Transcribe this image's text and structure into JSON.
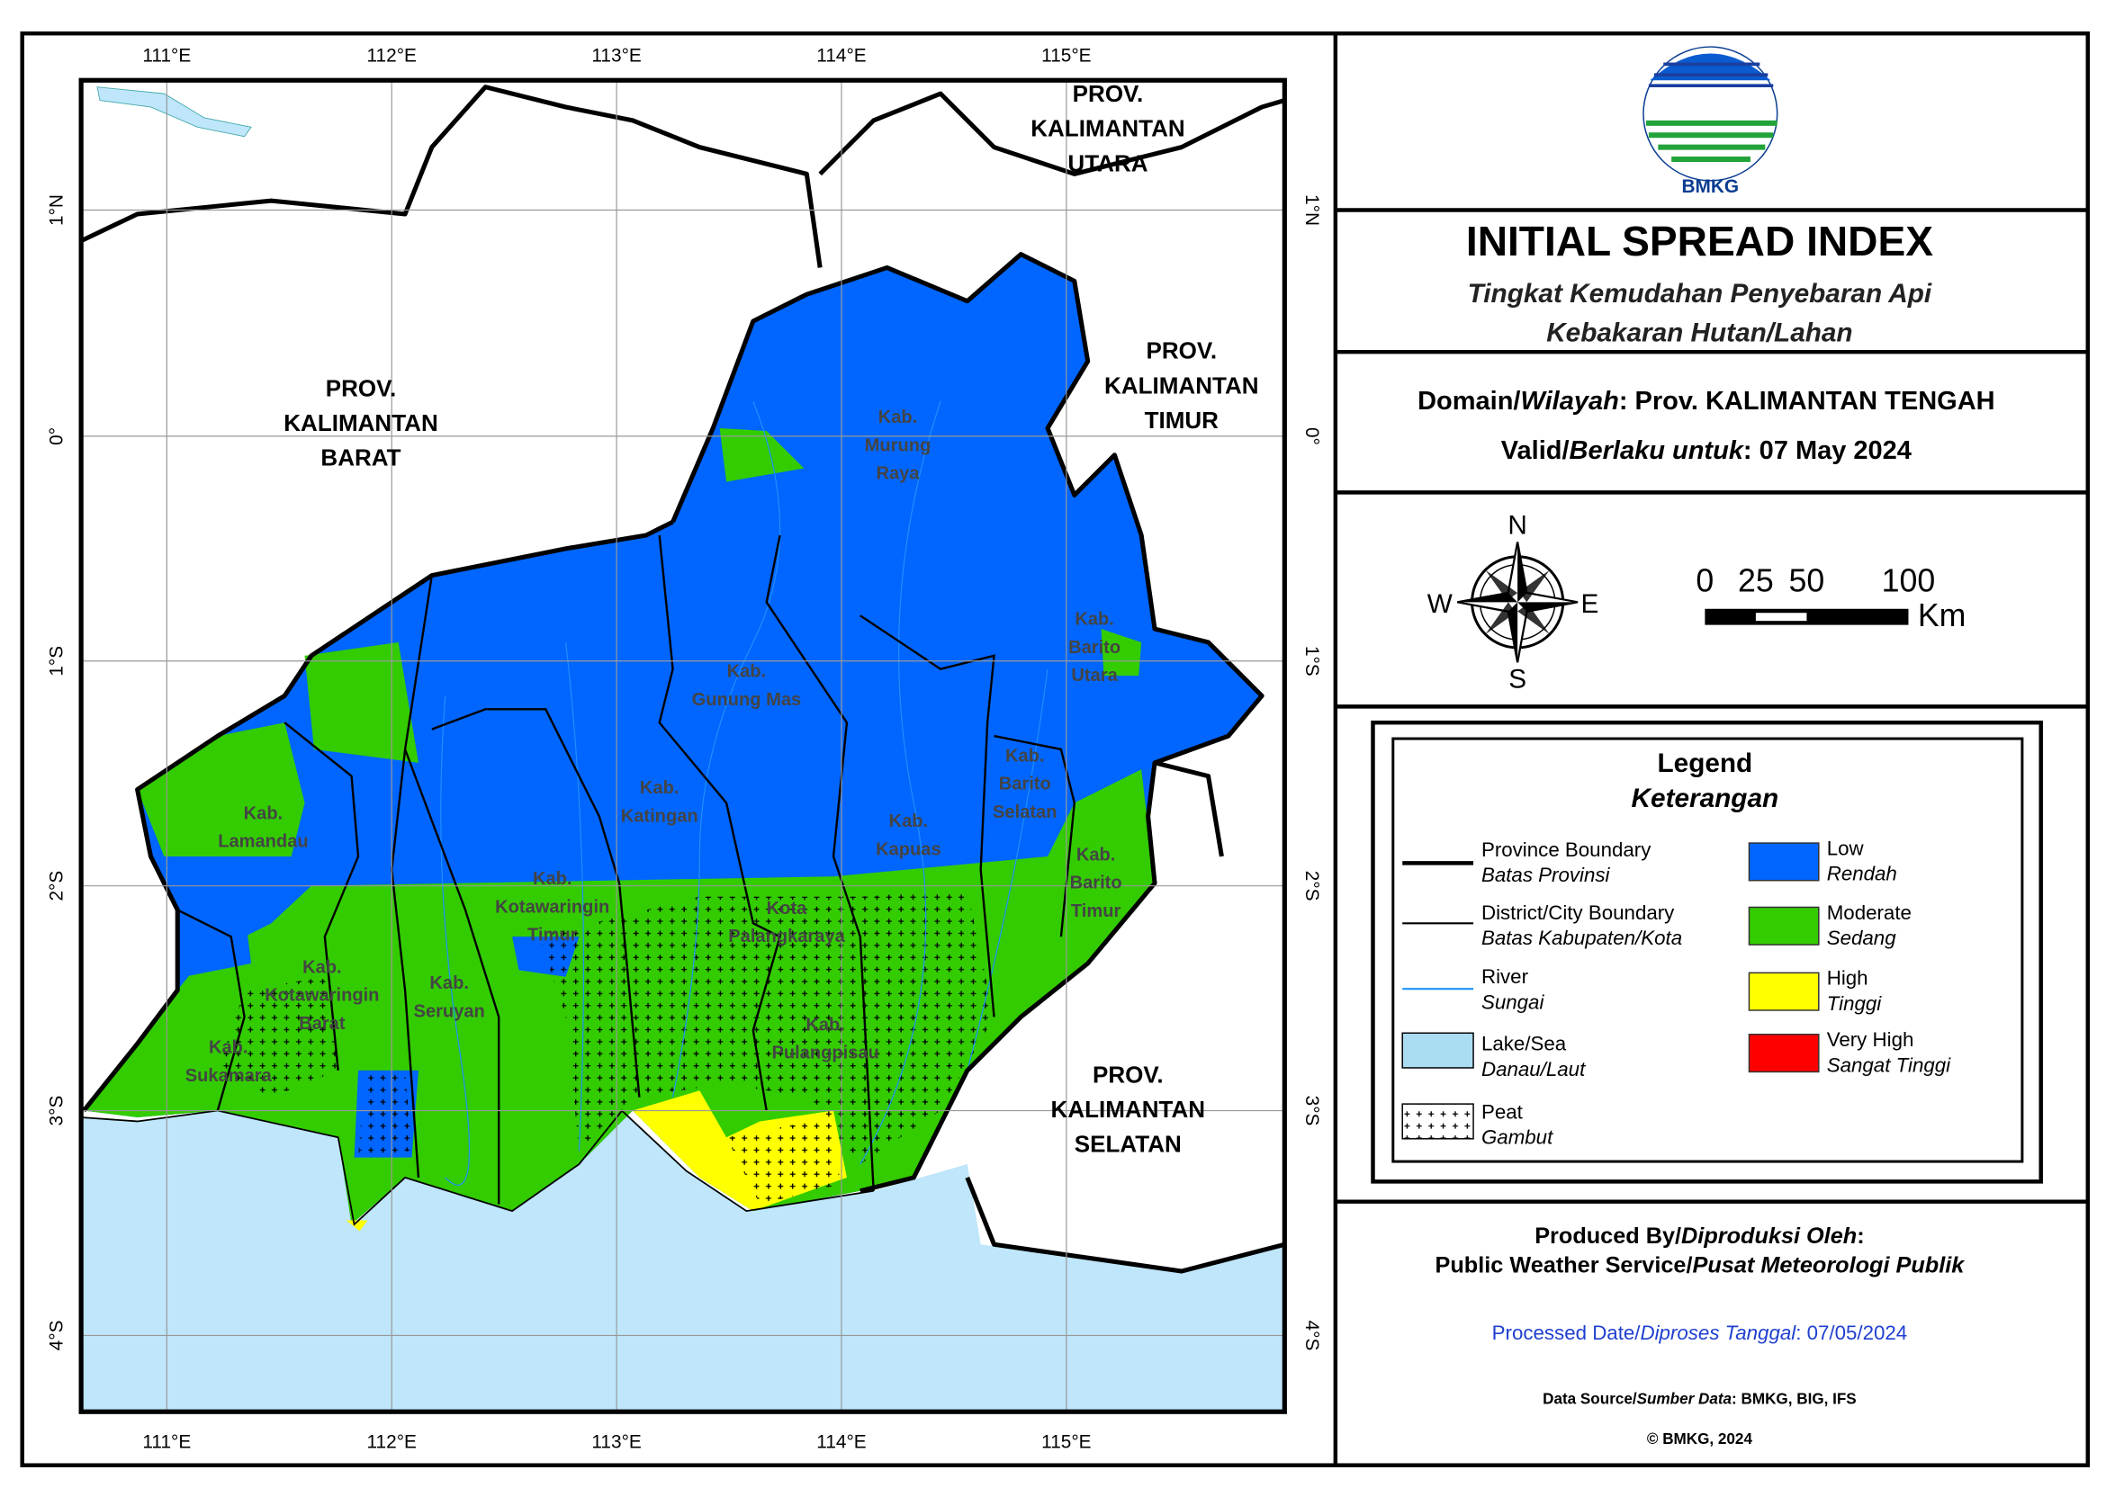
{
  "header": {
    "logo_text": "BMKG",
    "title": "INITIAL SPREAD INDEX",
    "subtitle_lines": [
      "Tingkat Kemudahan Penyebaran Api",
      "Kebakaran Hutan/Lahan"
    ]
  },
  "info": {
    "domain": {
      "label": "Domain/",
      "label_italic": "Wilayah",
      "value": ": Prov. KALIMANTAN TENGAH"
    },
    "valid": {
      "label": "Valid/",
      "label_italic": "Berlaku untuk",
      "value": ": 07 May 2024"
    }
  },
  "compass": {
    "north": "N",
    "south": "S",
    "east": "E",
    "west": "W"
  },
  "scale_bar": {
    "ticks": [
      "0",
      "25",
      "50",
      "100"
    ],
    "unit": "Km"
  },
  "legend": {
    "title": "Legend",
    "subtitle": "Keterangan",
    "items": [
      {
        "label": "Province Boundary",
        "sublabel": "Batas Provinsi"
      },
      {
        "label": "District/City Boundary",
        "sublabel": "Batas Kabupaten/Kota"
      },
      {
        "label": "River",
        "sublabel": "Sungai"
      },
      {
        "label": "Lake/Sea",
        "sublabel": "Danau/Laut"
      },
      {
        "label": "Peat",
        "sublabel": "Gambut"
      },
      {
        "label": "Low",
        "sublabel": "Rendah",
        "color": "#0066ff"
      },
      {
        "label": "Moderate",
        "sublabel": "Sedang",
        "color": "#33cc00"
      },
      {
        "label": "High",
        "sublabel": "Tinggi",
        "color": "#ffff00"
      },
      {
        "label": "Very High",
        "sublabel": "Sangat Tinggi",
        "color": "#ff0000"
      }
    ]
  },
  "footer": {
    "produced_by": {
      "label": "Produced By/",
      "label_italic": "Diproduksi Oleh",
      "value": ":"
    },
    "producer": {
      "label": "Public Weather Service/",
      "label_italic": "Pusat Meteorologi Publik"
    },
    "processed": {
      "label": "Processed Date/",
      "label_italic": "Diproses Tanggal",
      "value": ": 07/05/2024"
    },
    "data_source": {
      "label": "Data Source/",
      "label_italic": "Sumber Data",
      "value": ": BMKG, BIG, IFS"
    },
    "copyright": "© BMKG, 2024"
  },
  "map": {
    "lon_ticks": [
      "111°E",
      "112°E",
      "113°E",
      "114°E",
      "115°E"
    ],
    "lat_ticks": [
      "1°N",
      "0°",
      "1°S",
      "2°S",
      "3°S",
      "4°S"
    ],
    "provinces": [
      [
        "PROV.",
        "KALIMANTAN",
        "UTARA"
      ],
      [
        "PROV.",
        "KALIMANTAN",
        "BARAT"
      ],
      [
        "PROV.",
        "KALIMANTAN",
        "TIMUR"
      ],
      [
        "PROV.",
        "KALIMANTAN",
        "SELATAN"
      ]
    ],
    "districts": [
      [
        "Kab.",
        "Murung",
        "Raya"
      ],
      [
        "Kab.",
        "Barito",
        "Utara"
      ],
      [
        "Kab.",
        "Gunung Mas"
      ],
      [
        "Kab.",
        "Katingan"
      ],
      [
        "Kab.",
        "Kapuas"
      ],
      [
        "Kab.",
        "Barito",
        "Selatan"
      ],
      [
        "Kab.",
        "Barito",
        "Timur"
      ],
      [
        "Kab.",
        "Lamandau"
      ],
      [
        "Kab.",
        "Kotawaringin",
        "Timur"
      ],
      [
        "Kota",
        "Palangkaraya"
      ],
      [
        "Kab.",
        "Kotawaringin",
        "Barat"
      ],
      [
        "Kab.",
        "Seruyan"
      ],
      [
        "Kab.",
        "Pulangpisau"
      ],
      [
        "Kab.",
        "Sukamara"
      ]
    ]
  }
}
